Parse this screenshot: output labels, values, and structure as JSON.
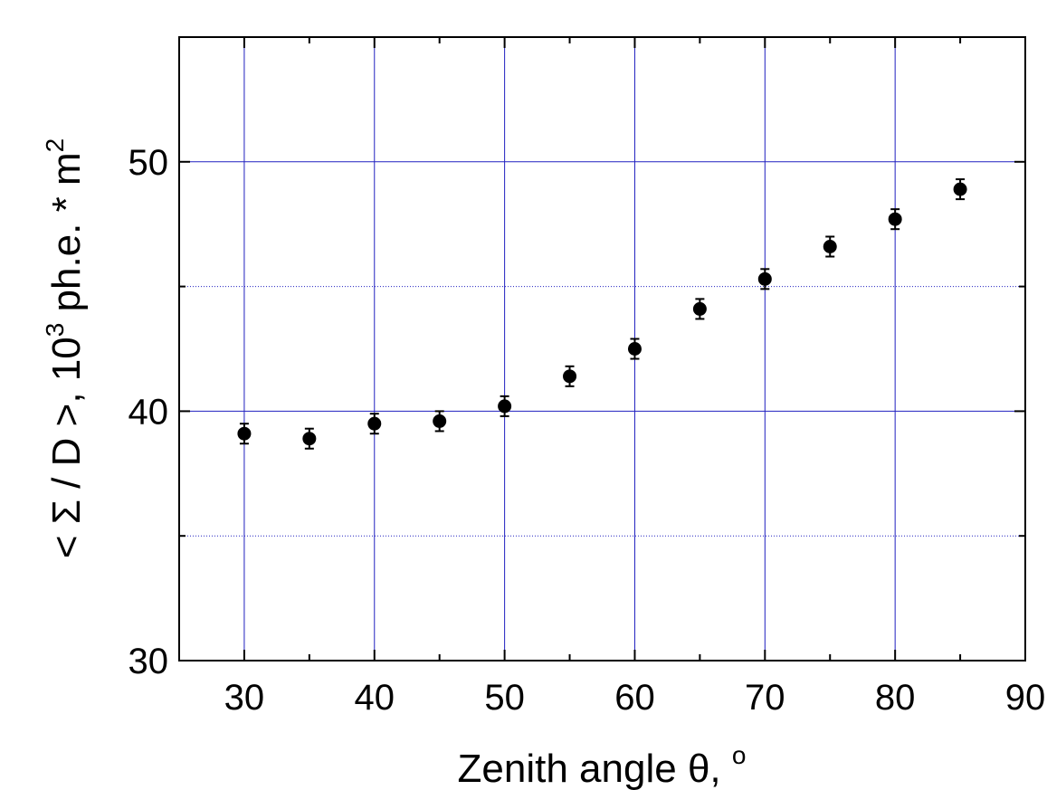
{
  "chart_data": {
    "type": "scatter",
    "xlabel": "Zenith angle θ, °",
    "xlabel_parts": {
      "main": "Zenith angle θ, ",
      "sup": "o"
    },
    "ylabel": "< Σ / D >, 10³ ph.e. * m²",
    "ylabel_parts": {
      "pre": "< Σ / D >, 10",
      "sup1": "3",
      "mid": " ph.e. * m",
      "sup2": "2"
    },
    "xlim": [
      25,
      90
    ],
    "ylim": [
      30,
      55
    ],
    "xticks": [
      30,
      40,
      50,
      60,
      70,
      80,
      90
    ],
    "yticks": [
      30,
      40,
      50
    ],
    "y_minor_dotted": [
      35,
      45
    ],
    "grid": true,
    "colors": {
      "grid": "#2020c0",
      "marker": "#000000",
      "axis": "#000000"
    },
    "series": [
      {
        "x": [
          30,
          35,
          40,
          45,
          50,
          55,
          60,
          65,
          70,
          75,
          80,
          85
        ],
        "y": [
          39.1,
          38.9,
          39.5,
          39.6,
          40.2,
          41.4,
          42.5,
          44.1,
          45.3,
          46.6,
          47.7,
          48.9
        ],
        "yerr": [
          0.4,
          0.4,
          0.4,
          0.4,
          0.4,
          0.4,
          0.4,
          0.4,
          0.4,
          0.4,
          0.4,
          0.4
        ]
      }
    ]
  }
}
